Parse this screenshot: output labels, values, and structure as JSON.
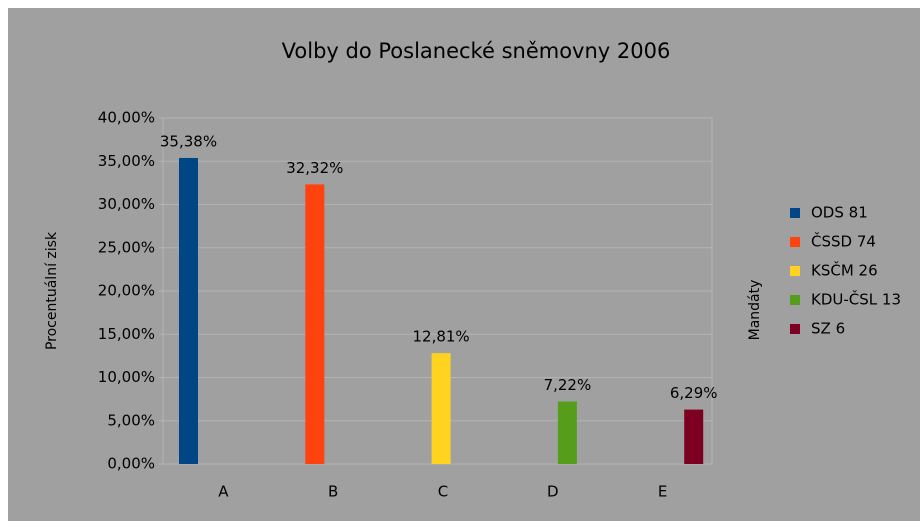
{
  "chart_data": {
    "type": "bar",
    "title": "Volby do Poslanecké sněmovny 2006",
    "y_label": "Procentuální zisk",
    "y2_label": "Mandáty",
    "categories": [
      "A",
      "B",
      "C",
      "D",
      "E"
    ],
    "series": [
      {
        "name": "ODS 81",
        "color": "#004586",
        "values": [
          35.38,
          null,
          null,
          null,
          null
        ],
        "value_labels": [
          "35,38%",
          null,
          null,
          null,
          null
        ]
      },
      {
        "name": "ČSSD 74",
        "color": "#ff420e",
        "values": [
          null,
          32.32,
          null,
          null,
          null
        ],
        "value_labels": [
          null,
          "32,32%",
          null,
          null,
          null
        ]
      },
      {
        "name": "KSČM 26",
        "color": "#ffd320",
        "values": [
          null,
          null,
          12.81,
          null,
          null
        ],
        "value_labels": [
          null,
          null,
          "12,81%",
          null,
          null
        ]
      },
      {
        "name": "KDU-ČSL 13",
        "color": "#579d1c",
        "values": [
          null,
          null,
          null,
          7.22,
          null
        ],
        "value_labels": [
          null,
          null,
          null,
          "7,22%",
          null
        ]
      },
      {
        "name": "SZ 6",
        "color": "#7e0021",
        "values": [
          null,
          null,
          null,
          null,
          6.29
        ],
        "value_labels": [
          null,
          null,
          null,
          null,
          "6,29%"
        ]
      }
    ],
    "ylim": [
      0,
      40
    ],
    "yticks": [
      {
        "value": 0,
        "label": "0,00%"
      },
      {
        "value": 5,
        "label": "5,00%"
      },
      {
        "value": 10,
        "label": "10,00%"
      },
      {
        "value": 15,
        "label": "15,00%"
      },
      {
        "value": 20,
        "label": "20,00%"
      },
      {
        "value": 25,
        "label": "25,00%"
      },
      {
        "value": 30,
        "label": "30,00%"
      },
      {
        "value": 35,
        "label": "35,00%"
      },
      {
        "value": 40,
        "label": "40,00%"
      }
    ],
    "grid": true,
    "legend": "right"
  }
}
